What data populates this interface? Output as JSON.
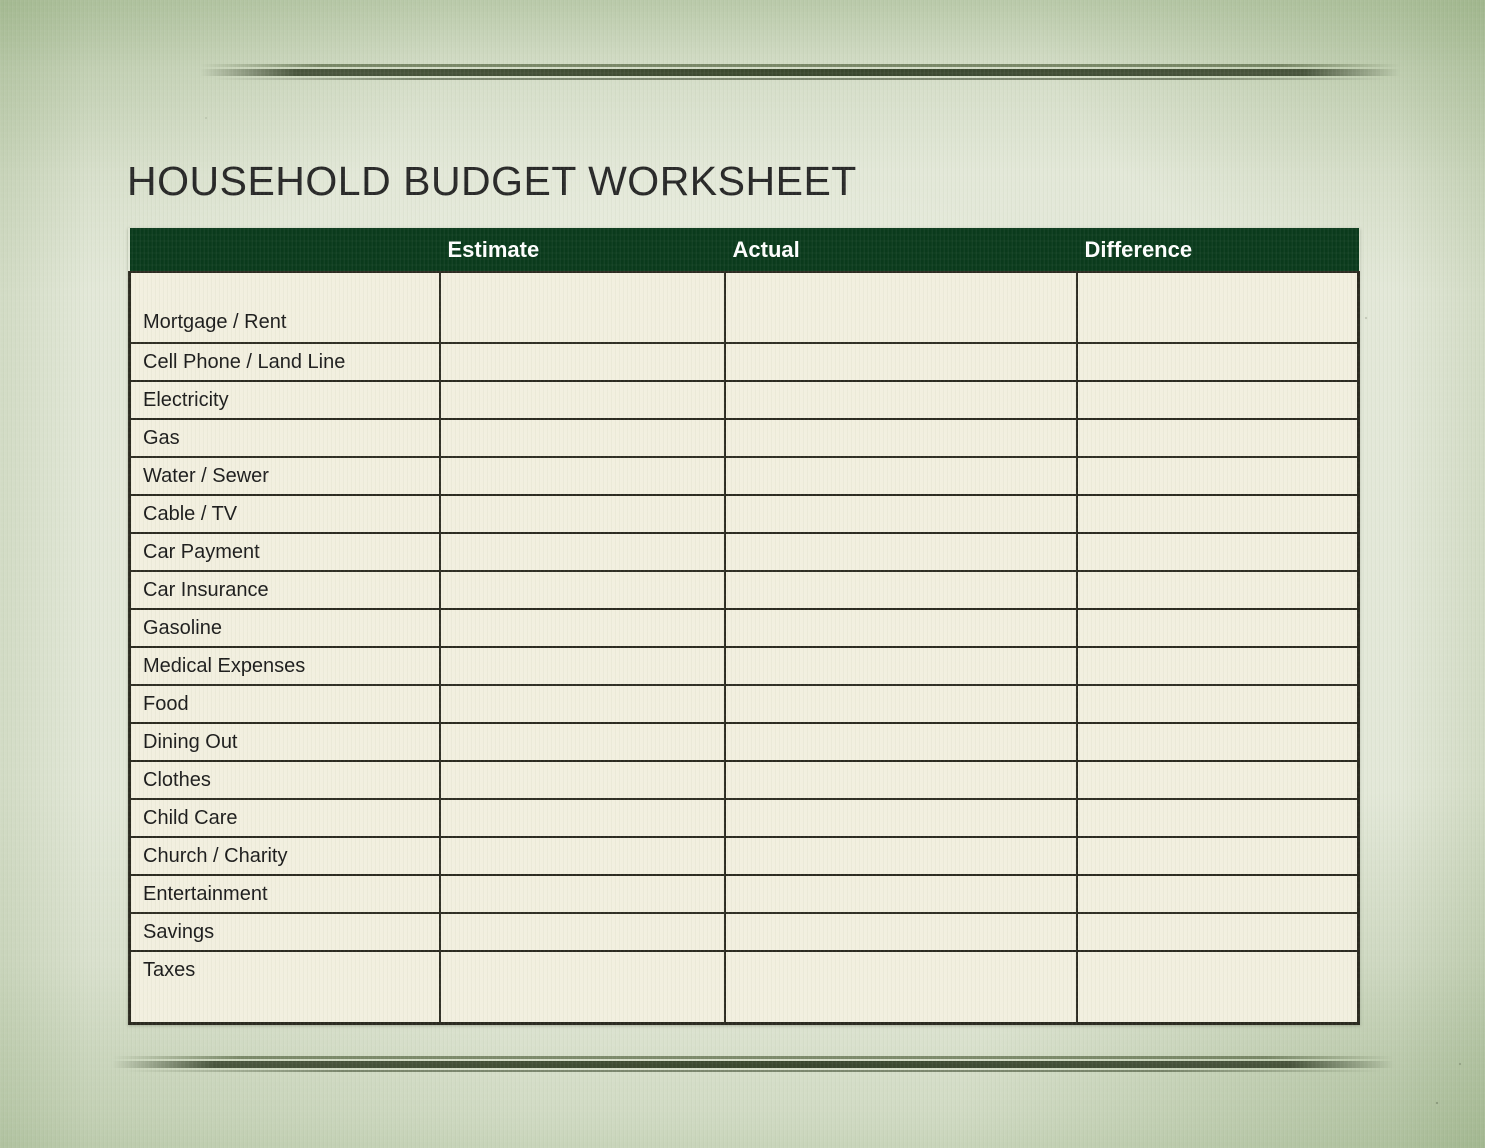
{
  "page": {
    "title": "HOUSEHOLD BUDGET WORKSHEET"
  },
  "table": {
    "columns": [
      "",
      "Estimate",
      "Actual",
      "Difference"
    ],
    "rows": [
      {
        "label": "Mortgage / Rent",
        "estimate": "",
        "actual": "",
        "difference": ""
      },
      {
        "label": "Cell Phone / Land Line",
        "estimate": "",
        "actual": "",
        "difference": ""
      },
      {
        "label": "Electricity",
        "estimate": "",
        "actual": "",
        "difference": ""
      },
      {
        "label": "Gas",
        "estimate": "",
        "actual": "",
        "difference": ""
      },
      {
        "label": "Water / Sewer",
        "estimate": "",
        "actual": "",
        "difference": ""
      },
      {
        "label": "Cable / TV",
        "estimate": "",
        "actual": "",
        "difference": ""
      },
      {
        "label": "Car Payment",
        "estimate": "",
        "actual": "",
        "difference": ""
      },
      {
        "label": "Car Insurance",
        "estimate": "",
        "actual": "",
        "difference": ""
      },
      {
        "label": "Gasoline",
        "estimate": "",
        "actual": "",
        "difference": ""
      },
      {
        "label": "Medical Expenses",
        "estimate": "",
        "actual": "",
        "difference": ""
      },
      {
        "label": "Food",
        "estimate": "",
        "actual": "",
        "difference": ""
      },
      {
        "label": "Dining Out",
        "estimate": "",
        "actual": "",
        "difference": ""
      },
      {
        "label": "Clothes",
        "estimate": "",
        "actual": "",
        "difference": ""
      },
      {
        "label": "Child Care",
        "estimate": "",
        "actual": "",
        "difference": ""
      },
      {
        "label": "Church / Charity",
        "estimate": "",
        "actual": "",
        "difference": ""
      },
      {
        "label": "Entertainment",
        "estimate": "",
        "actual": "",
        "difference": ""
      },
      {
        "label": "Savings",
        "estimate": "",
        "actual": "",
        "difference": ""
      },
      {
        "label": "Taxes",
        "estimate": "",
        "actual": "",
        "difference": ""
      }
    ]
  },
  "colors": {
    "header_green": "#0a3a1c",
    "cell_cream": "#f2efdf",
    "border_dark": "#2b2a20",
    "divider_olive": "#3c492f",
    "page_green": "#cfdcc2"
  }
}
